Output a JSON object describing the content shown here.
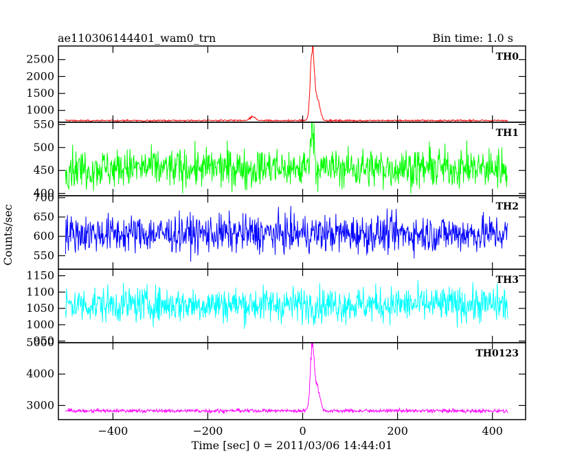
{
  "header": {
    "title": "ae110306144401_wam0_trn",
    "bin_time": "Bin time: 1.0 s"
  },
  "axes": {
    "xlabel": "Time [sec] 0 = 2011/03/06 14:44:01",
    "ylabel": "Counts/sec"
  },
  "chart_data": {
    "type": "line",
    "title": "ae110306144401_wam0_trn",
    "subtitle": "Bin time: 1.0 s",
    "xlabel": "Time [sec] 0 = 2011/03/06 14:44:01",
    "ylabel": "Counts/sec",
    "xlim": [
      -515,
      470
    ],
    "xticks": [
      -400,
      -200,
      0,
      200,
      400
    ],
    "x_range": [
      -500,
      432
    ],
    "bin_time": 1.0,
    "panels": [
      {
        "name": "TH0",
        "color": "#ff0000",
        "ylim": [
          650,
          2900
        ],
        "yticks": [
          1000,
          1500,
          2000,
          2500
        ],
        "baseline": 700,
        "noise": 20,
        "peaks": [
          {
            "x": 20,
            "y": 2900
          },
          {
            "x": 30,
            "y": 1450
          },
          {
            "x": -105,
            "y": 820
          }
        ]
      },
      {
        "name": "TH1",
        "color": "#00ff00",
        "ylim": [
          395,
          555
        ],
        "yticks": [
          400,
          450,
          500,
          550
        ],
        "baseline": 455,
        "noise": 35,
        "peaks": [
          {
            "x": 20,
            "y": 555
          }
        ]
      },
      {
        "name": "TH2",
        "color": "#0000ff",
        "ylim": [
          515,
          705
        ],
        "yticks": [
          550,
          600,
          650,
          700
        ],
        "baseline": 607,
        "noise": 40,
        "peaks": []
      },
      {
        "name": "TH3",
        "color": "#00ffff",
        "ylim": [
          945,
          1170
        ],
        "yticks": [
          950,
          1000,
          1050,
          1100,
          1150
        ],
        "baseline": 1062,
        "noise": 45,
        "peaks": []
      },
      {
        "name": "TH0123",
        "color": "#ff00ff",
        "ylim": [
          2550,
          5000
        ],
        "yticks": [
          3000,
          4000,
          5000
        ],
        "baseline": 2830,
        "noise": 50,
        "peaks": [
          {
            "x": 20,
            "y": 5000
          },
          {
            "x": 30,
            "y": 3700
          }
        ]
      }
    ]
  }
}
